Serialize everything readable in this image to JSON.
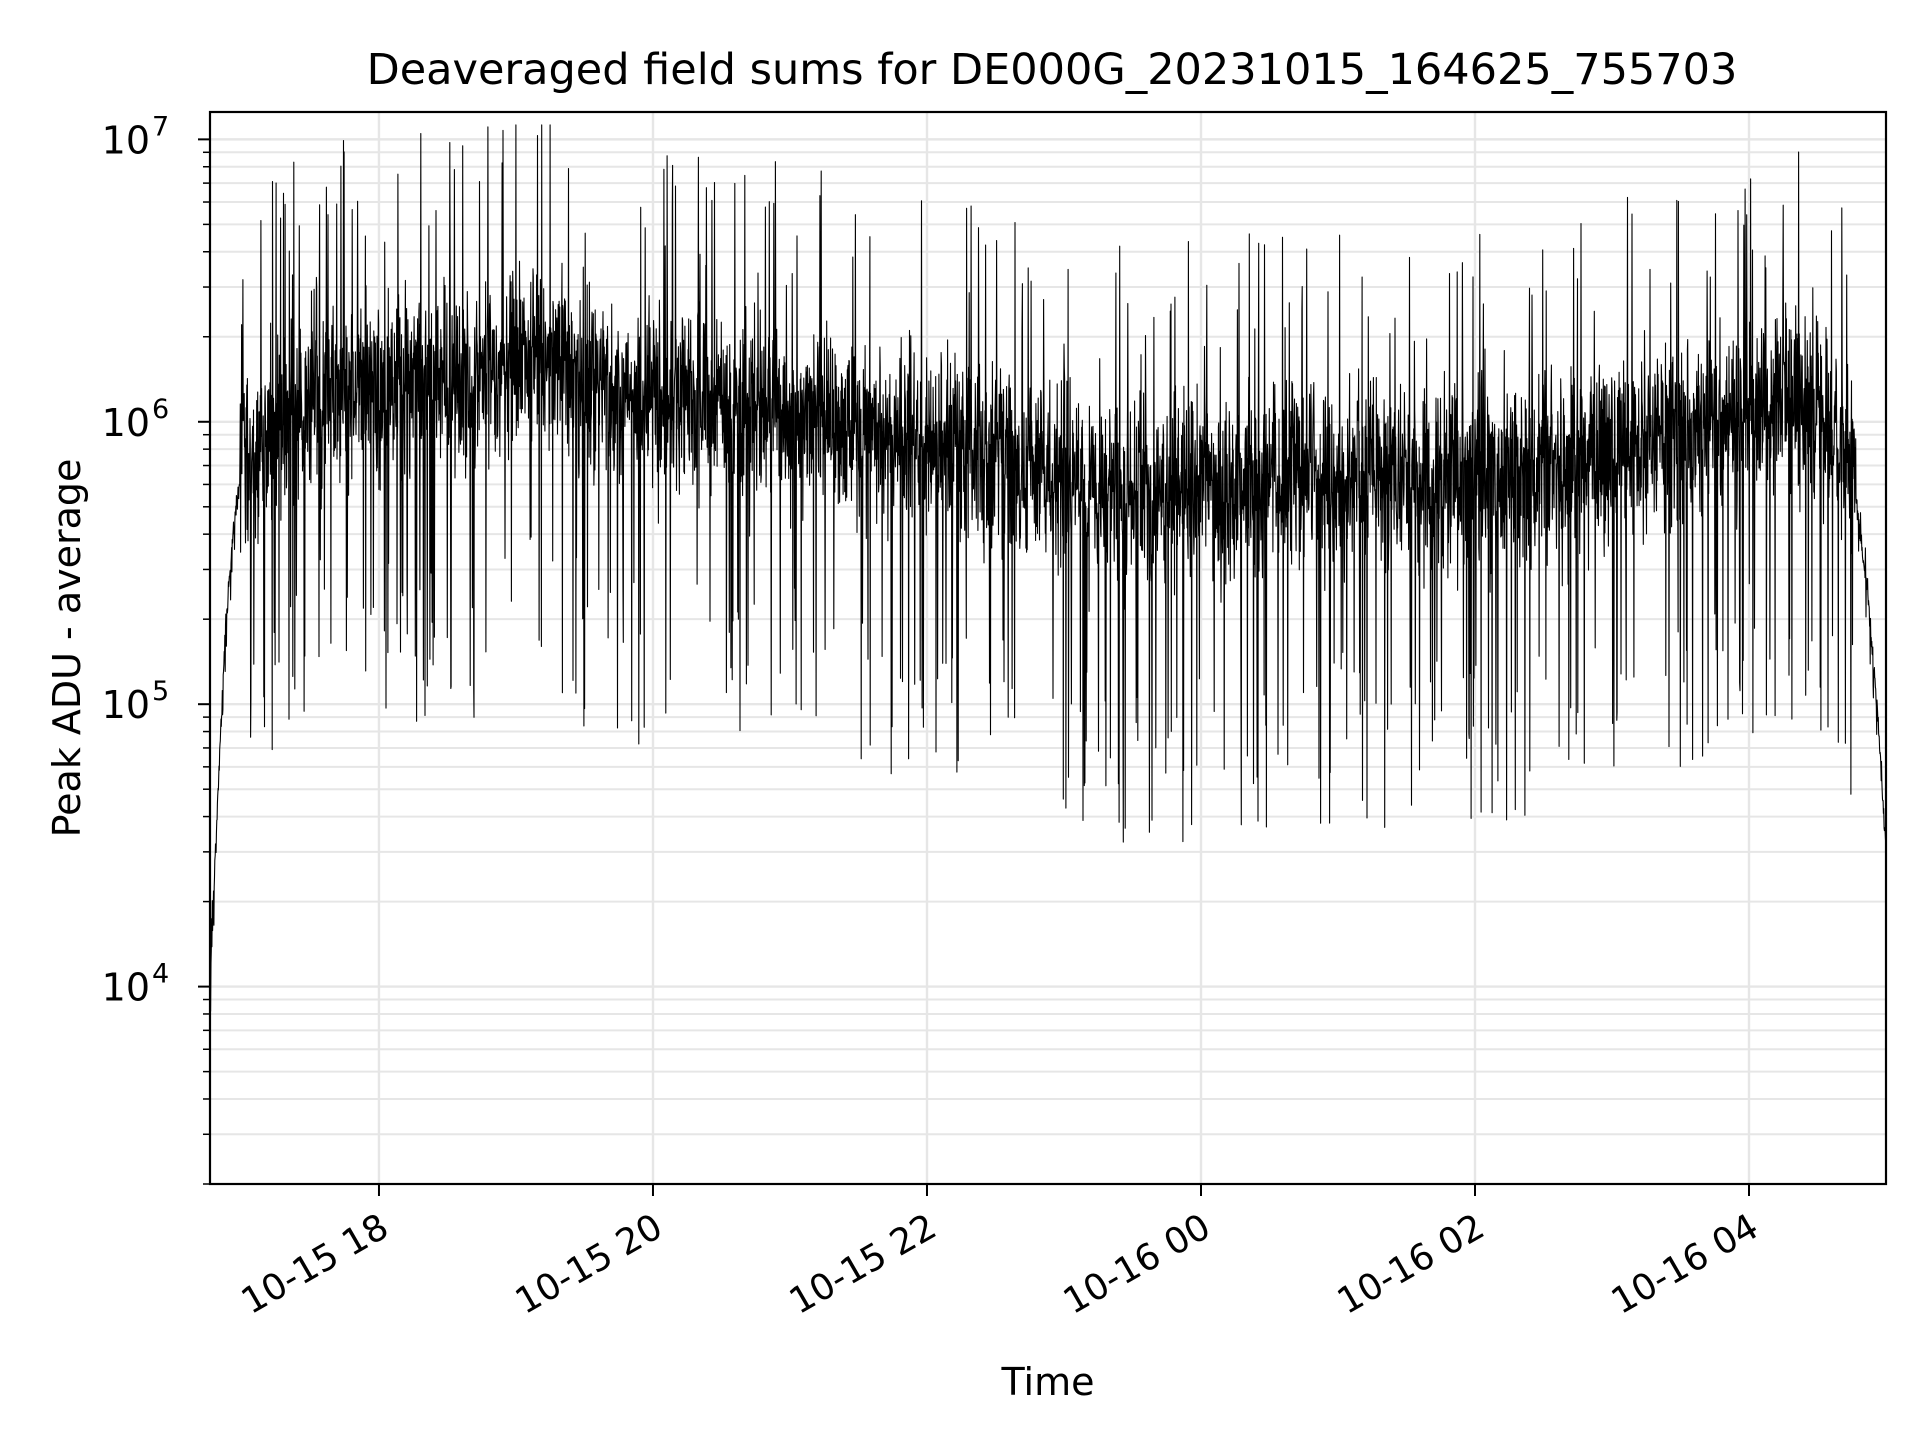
{
  "chart_data": {
    "type": "line",
    "title": "Deaveraged field sums for DE000G_20231015_164625_755703",
    "xlabel": "Time",
    "ylabel": "Peak ADU - average",
    "yscale": "log",
    "ylim": [
      2000,
      12500000
    ],
    "xlim": [
      "2023-10-15 16:46",
      "2023-10-16 05:00"
    ],
    "grid": true,
    "x_ticks": [
      {
        "label": "10-15 18",
        "time": "2023-10-15 18:00"
      },
      {
        "label": "10-15 20",
        "time": "2023-10-15 20:00"
      },
      {
        "label": "10-15 22",
        "time": "2023-10-15 22:00"
      },
      {
        "label": "10-16 00",
        "time": "2023-10-16 00:00"
      },
      {
        "label": "10-16 02",
        "time": "2023-10-16 02:00"
      },
      {
        "label": "10-16 04",
        "time": "2023-10-16 04:00"
      }
    ],
    "y_ticks": [
      {
        "base": "10",
        "exp": "4",
        "value": 10000
      },
      {
        "base": "10",
        "exp": "5",
        "value": 100000
      },
      {
        "base": "10",
        "exp": "6",
        "value": 1000000
      },
      {
        "base": "10",
        "exp": "7",
        "value": 10000000
      }
    ],
    "line_color": "#000000",
    "grid_color": "#e6e6e6",
    "series": [
      {
        "points": [
          [
            "2023-10-15 16:46",
            10000
          ],
          [
            "2023-10-15 16:48",
            25000
          ],
          [
            "2023-10-15 16:50",
            60000
          ],
          [
            "2023-10-15 16:53",
            200000
          ],
          [
            "2023-10-15 16:56",
            400000
          ],
          [
            "2023-10-15 17:00",
            700000
          ],
          [
            "2023-10-15 17:10",
            900000
          ],
          [
            "2023-10-15 17:30",
            1300000
          ],
          [
            "2023-10-15 17:50",
            1400000
          ],
          [
            "2023-10-15 18:10",
            1300000
          ],
          [
            "2023-10-15 18:40",
            1500000
          ],
          [
            "2023-10-15 19:10",
            1700000
          ],
          [
            "2023-10-15 19:40",
            1300000
          ],
          [
            "2023-10-15 20:10",
            1200000
          ],
          [
            "2023-10-15 20:40",
            1100000
          ],
          [
            "2023-10-15 21:10",
            1000000
          ],
          [
            "2023-10-15 21:40",
            950000
          ],
          [
            "2023-10-15 22:10",
            850000
          ],
          [
            "2023-10-15 22:40",
            700000
          ],
          [
            "2023-10-15 23:10",
            600000
          ],
          [
            "2023-10-15 23:40",
            550000
          ],
          [
            "2023-10-16 00:10",
            600000
          ],
          [
            "2023-10-16 00:40",
            650000
          ],
          [
            "2023-10-16 01:10",
            650000
          ],
          [
            "2023-10-16 01:40",
            600000
          ],
          [
            "2023-10-16 02:10",
            650000
          ],
          [
            "2023-10-16 02:40",
            700000
          ],
          [
            "2023-10-16 03:10",
            800000
          ],
          [
            "2023-10-16 03:40",
            1000000
          ],
          [
            "2023-10-16 04:10",
            1200000
          ],
          [
            "2023-10-16 04:30",
            1100000
          ],
          [
            "2023-10-16 04:45",
            700000
          ],
          [
            "2023-10-16 04:52",
            250000
          ],
          [
            "2023-10-16 04:56",
            100000
          ],
          [
            "2023-10-16 05:00",
            30000
          ]
        ]
      }
    ]
  }
}
